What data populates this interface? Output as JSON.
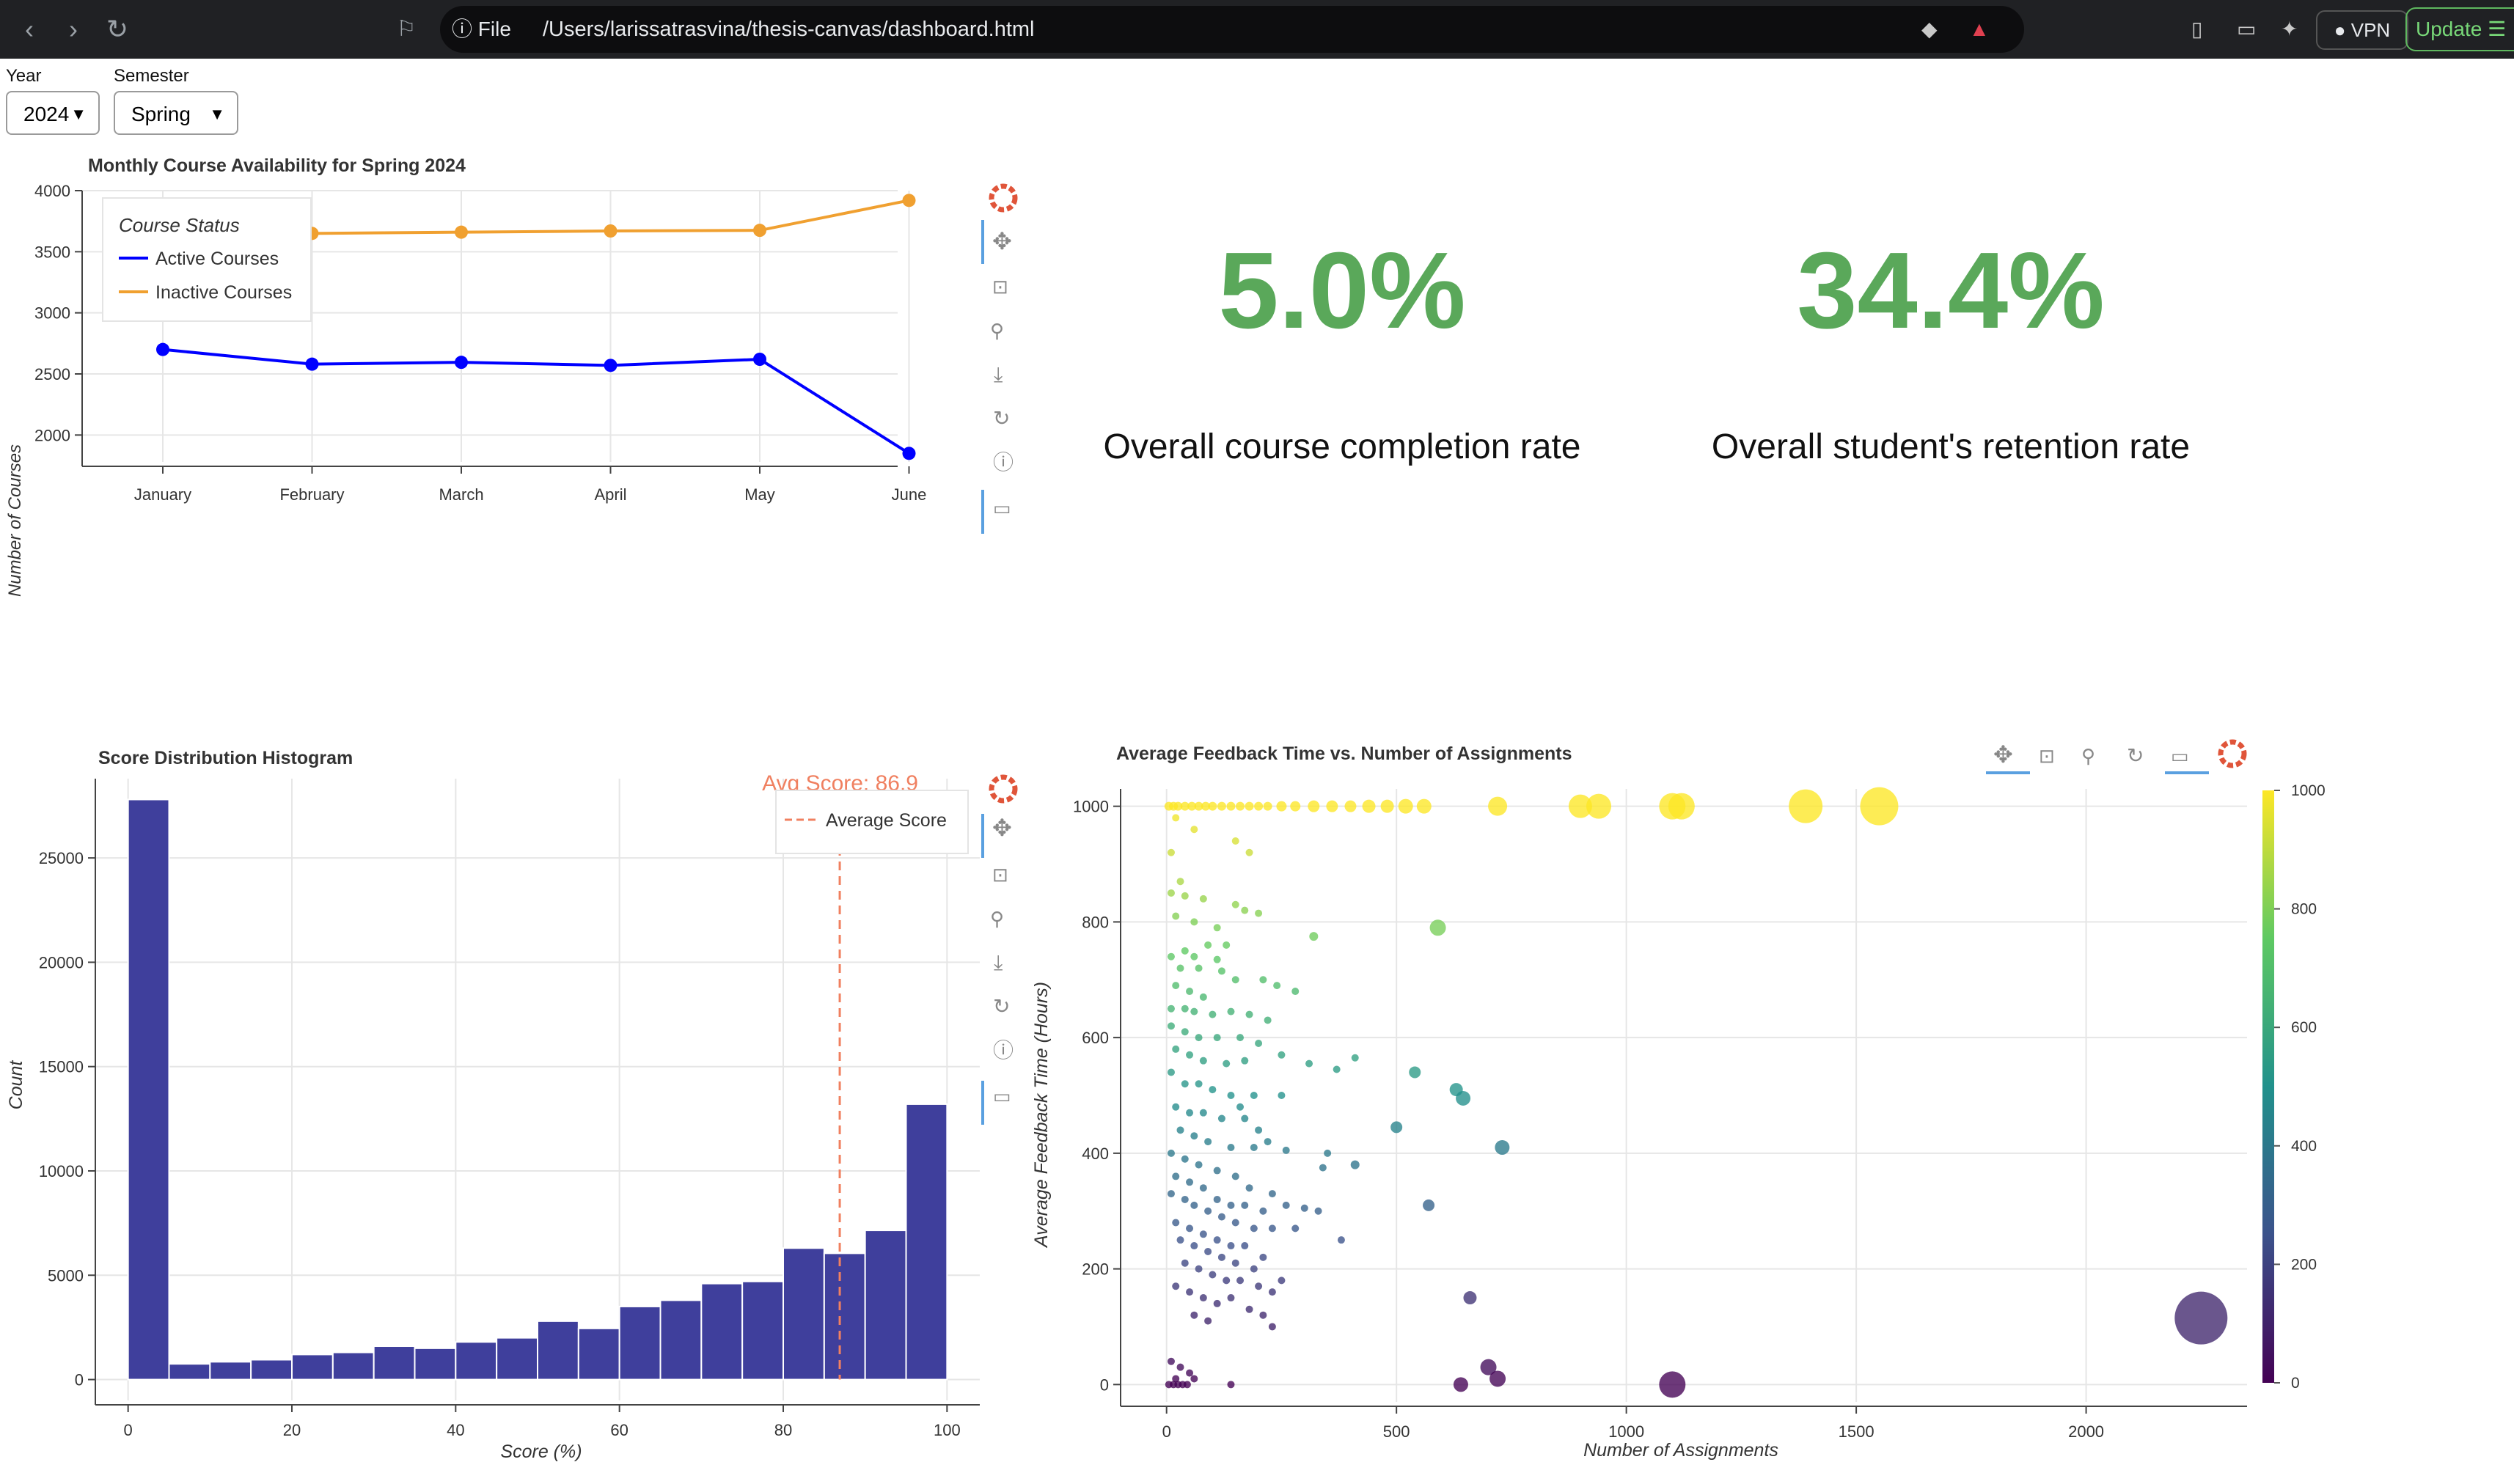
{
  "browser": {
    "file_label": "File",
    "url": "/Users/larissatrasvina/thesis-canvas/dashboard.html",
    "vpn_label": "VPN",
    "update_label": "Update"
  },
  "controls": {
    "year_label": "Year",
    "year_value": "2024",
    "semester_label": "Semester",
    "semester_value": "Spring"
  },
  "kpis": [
    {
      "value": "5.0%",
      "label": "Overall course completion rate"
    },
    {
      "value": "34.4%",
      "label": "Overall student's retention rate"
    }
  ],
  "colors": {
    "active": "#0000ff",
    "inactive": "#f0a030",
    "bars": "#3f3f9c",
    "avg_line": "#f08060",
    "kpi": "#5aa85a"
  },
  "chart_data": [
    {
      "type": "line",
      "title": "Monthly Course Availability for Spring 2024",
      "xlabel": "",
      "ylabel": "Number of Courses",
      "categories": [
        "January",
        "February",
        "March",
        "April",
        "May",
        "June"
      ],
      "series": [
        {
          "name": "Active Courses",
          "values": [
            2700,
            2580,
            2595,
            2570,
            2620,
            1850
          ]
        },
        {
          "name": "Inactive Courses",
          "values": [
            3660,
            3650,
            3660,
            3670,
            3675,
            3920
          ]
        }
      ],
      "legend_title": "Course Status",
      "legend_position": "top-left",
      "ylim": [
        1780,
        4000
      ],
      "yticks": [
        "2000",
        "2500",
        "3000",
        "3500",
        "4000"
      ],
      "grid": true
    },
    {
      "type": "bar",
      "title": "Score Distribution Histogram",
      "xlabel": "Score (%)",
      "ylabel": "Count",
      "bin_width": 5,
      "bin_starts": [
        0,
        5,
        10,
        15,
        20,
        25,
        30,
        35,
        40,
        45,
        50,
        55,
        60,
        65,
        70,
        75,
        80,
        85,
        90,
        95
      ],
      "values": [
        27800,
        750,
        850,
        950,
        1200,
        1300,
        1600,
        1500,
        1800,
        2000,
        2800,
        2450,
        3500,
        3800,
        4600,
        4700,
        6300,
        6050,
        7150,
        13200
      ],
      "xlim": [
        -4,
        104
      ],
      "ylim": [
        -1000,
        28800
      ],
      "xticks": [
        "0",
        "20",
        "40",
        "60",
        "80",
        "100"
      ],
      "yticks": [
        "0",
        "5000",
        "10000",
        "15000",
        "20000",
        "25000"
      ],
      "avg_score": 86.9,
      "avg_label": "Avg Score: 86.9",
      "legend": [
        "Average Score"
      ],
      "legend_position": "top-right",
      "grid": true
    },
    {
      "type": "scatter",
      "title": "Average Feedback Time vs. Number of Assignments",
      "xlabel": "Number of Assignments",
      "ylabel": "Average Feedback Time (Hours)",
      "xlim": [
        -100,
        2350
      ],
      "ylim": [
        -30,
        1030
      ],
      "xticks": [
        "0",
        "500",
        "1000",
        "1500",
        "2000"
      ],
      "yticks": [
        "0",
        "200",
        "400",
        "600",
        "800",
        "1000"
      ],
      "colorbar": {
        "palette": "viridis",
        "range": [
          0,
          1000
        ],
        "ticks": [
          "0",
          "200",
          "400",
          "600",
          "800",
          "1000"
        ]
      },
      "grid": true,
      "points": [
        [
          5,
          1000,
          6
        ],
        [
          15,
          1000,
          6
        ],
        [
          25,
          1000,
          6
        ],
        [
          40,
          1000,
          6
        ],
        [
          55,
          1000,
          6
        ],
        [
          70,
          1000,
          6
        ],
        [
          85,
          1000,
          6
        ],
        [
          100,
          1000,
          6
        ],
        [
          120,
          1000,
          6
        ],
        [
          140,
          1000,
          6
        ],
        [
          160,
          1000,
          6
        ],
        [
          180,
          1000,
          6
        ],
        [
          200,
          1000,
          6
        ],
        [
          220,
          1000,
          6
        ],
        [
          250,
          1000,
          7
        ],
        [
          280,
          1000,
          7
        ],
        [
          320,
          1000,
          8
        ],
        [
          360,
          1000,
          8
        ],
        [
          400,
          1000,
          8
        ],
        [
          440,
          1000,
          9
        ],
        [
          480,
          1000,
          9
        ],
        [
          520,
          1000,
          10
        ],
        [
          560,
          1000,
          10
        ],
        [
          720,
          1000,
          13
        ],
        [
          900,
          1000,
          16
        ],
        [
          940,
          1000,
          17
        ],
        [
          1100,
          1000,
          18
        ],
        [
          1120,
          1000,
          18
        ],
        [
          1390,
          1000,
          23
        ],
        [
          1550,
          1000,
          26
        ],
        [
          20,
          980,
          5
        ],
        [
          60,
          960,
          5
        ],
        [
          150,
          940,
          5
        ],
        [
          10,
          920,
          5
        ],
        [
          180,
          920,
          5
        ],
        [
          30,
          870,
          5
        ],
        [
          10,
          850,
          5
        ],
        [
          40,
          845,
          5
        ],
        [
          80,
          840,
          5
        ],
        [
          150,
          830,
          5
        ],
        [
          170,
          820,
          5
        ],
        [
          200,
          815,
          5
        ],
        [
          20,
          810,
          5
        ],
        [
          60,
          800,
          5
        ],
        [
          110,
          790,
          5
        ],
        [
          320,
          775,
          6
        ],
        [
          590,
          790,
          11
        ],
        [
          40,
          750,
          5
        ],
        [
          90,
          760,
          5
        ],
        [
          130,
          760,
          5
        ],
        [
          10,
          740,
          5
        ],
        [
          60,
          740,
          5
        ],
        [
          110,
          735,
          5
        ],
        [
          30,
          720,
          5
        ],
        [
          70,
          720,
          5
        ],
        [
          120,
          715,
          5
        ],
        [
          150,
          700,
          5
        ],
        [
          210,
          700,
          5
        ],
        [
          240,
          690,
          5
        ],
        [
          280,
          680,
          5
        ],
        [
          20,
          690,
          5
        ],
        [
          50,
          680,
          5
        ],
        [
          80,
          670,
          5
        ],
        [
          10,
          650,
          5
        ],
        [
          40,
          650,
          5
        ],
        [
          60,
          645,
          5
        ],
        [
          100,
          640,
          5
        ],
        [
          140,
          645,
          5
        ],
        [
          180,
          640,
          5
        ],
        [
          220,
          630,
          5
        ],
        [
          10,
          620,
          5
        ],
        [
          40,
          610,
          5
        ],
        [
          70,
          600,
          5
        ],
        [
          110,
          600,
          5
        ],
        [
          160,
          600,
          5
        ],
        [
          200,
          590,
          5
        ],
        [
          250,
          570,
          5
        ],
        [
          20,
          580,
          5
        ],
        [
          50,
          570,
          5
        ],
        [
          80,
          560,
          5
        ],
        [
          130,
          555,
          5
        ],
        [
          170,
          560,
          5
        ],
        [
          310,
          555,
          5
        ],
        [
          370,
          545,
          5
        ],
        [
          410,
          565,
          5
        ],
        [
          540,
          540,
          8
        ],
        [
          630,
          510,
          9
        ],
        [
          645,
          495,
          10
        ],
        [
          10,
          540,
          5
        ],
        [
          40,
          520,
          5
        ],
        [
          70,
          520,
          5
        ],
        [
          100,
          510,
          5
        ],
        [
          140,
          500,
          5
        ],
        [
          160,
          480,
          5
        ],
        [
          190,
          500,
          5
        ],
        [
          250,
          500,
          5
        ],
        [
          20,
          480,
          5
        ],
        [
          50,
          470,
          5
        ],
        [
          80,
          470,
          5
        ],
        [
          120,
          460,
          5
        ],
        [
          170,
          460,
          5
        ],
        [
          200,
          440,
          5
        ],
        [
          220,
          420,
          5
        ],
        [
          30,
          440,
          5
        ],
        [
          60,
          430,
          5
        ],
        [
          90,
          420,
          5
        ],
        [
          140,
          410,
          5
        ],
        [
          190,
          410,
          5
        ],
        [
          260,
          405,
          5
        ],
        [
          350,
          400,
          5
        ],
        [
          500,
          445,
          8
        ],
        [
          730,
          410,
          10
        ],
        [
          10,
          400,
          5
        ],
        [
          40,
          390,
          5
        ],
        [
          70,
          380,
          5
        ],
        [
          110,
          370,
          5
        ],
        [
          150,
          360,
          5
        ],
        [
          180,
          340,
          5
        ],
        [
          230,
          330,
          5
        ],
        [
          340,
          375,
          5
        ],
        [
          410,
          380,
          6
        ],
        [
          20,
          360,
          5
        ],
        [
          50,
          350,
          5
        ],
        [
          80,
          340,
          5
        ],
        [
          110,
          320,
          5
        ],
        [
          140,
          310,
          5
        ],
        [
          170,
          310,
          5
        ],
        [
          210,
          300,
          5
        ],
        [
          260,
          310,
          5
        ],
        [
          300,
          305,
          5
        ],
        [
          10,
          330,
          5
        ],
        [
          40,
          320,
          5
        ],
        [
          60,
          310,
          5
        ],
        [
          90,
          300,
          5
        ],
        [
          120,
          290,
          5
        ],
        [
          150,
          280,
          5
        ],
        [
          190,
          270,
          5
        ],
        [
          230,
          270,
          5
        ],
        [
          280,
          270,
          5
        ],
        [
          330,
          300,
          5
        ],
        [
          570,
          310,
          8
        ],
        [
          20,
          280,
          5
        ],
        [
          50,
          270,
          5
        ],
        [
          80,
          260,
          5
        ],
        [
          110,
          250,
          5
        ],
        [
          140,
          240,
          5
        ],
        [
          170,
          240,
          5
        ],
        [
          210,
          220,
          5
        ],
        [
          30,
          250,
          5
        ],
        [
          60,
          240,
          5
        ],
        [
          90,
          230,
          5
        ],
        [
          120,
          220,
          5
        ],
        [
          150,
          210,
          5
        ],
        [
          190,
          200,
          5
        ],
        [
          380,
          250,
          5
        ],
        [
          40,
          210,
          5
        ],
        [
          70,
          200,
          5
        ],
        [
          100,
          190,
          5
        ],
        [
          130,
          180,
          5
        ],
        [
          160,
          180,
          5
        ],
        [
          200,
          170,
          5
        ],
        [
          230,
          160,
          5
        ],
        [
          250,
          180,
          5
        ],
        [
          20,
          170,
          5
        ],
        [
          50,
          160,
          5
        ],
        [
          80,
          150,
          5
        ],
        [
          110,
          140,
          5
        ],
        [
          140,
          150,
          5
        ],
        [
          180,
          130,
          5
        ],
        [
          210,
          120,
          5
        ],
        [
          230,
          100,
          5
        ],
        [
          60,
          120,
          5
        ],
        [
          90,
          110,
          5
        ],
        [
          660,
          150,
          9
        ],
        [
          10,
          40,
          5
        ],
        [
          30,
          30,
          5
        ],
        [
          50,
          20,
          5
        ],
        [
          20,
          10,
          5
        ],
        [
          60,
          10,
          5
        ],
        [
          5,
          0,
          5
        ],
        [
          15,
          0,
          5
        ],
        [
          25,
          0,
          5
        ],
        [
          35,
          0,
          5
        ],
        [
          45,
          0,
          5
        ],
        [
          140,
          0,
          5
        ],
        [
          640,
          0,
          10
        ],
        [
          700,
          30,
          11
        ],
        [
          720,
          10,
          11
        ],
        [
          1100,
          0,
          18
        ],
        [
          2250,
          115,
          36
        ]
      ]
    }
  ]
}
